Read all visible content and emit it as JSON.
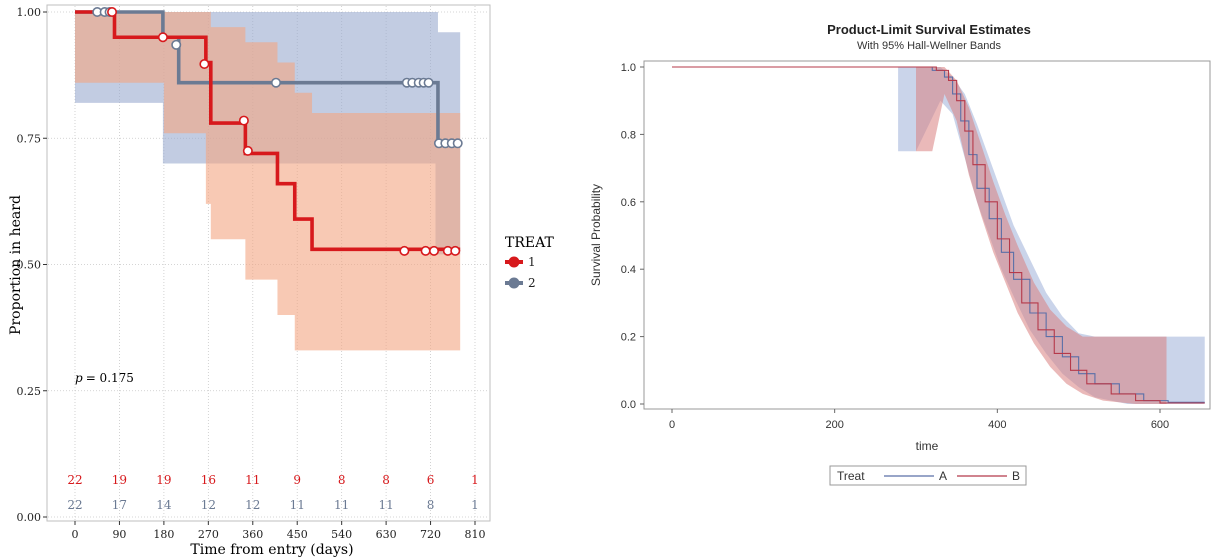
{
  "chart_data": [
    {
      "type": "line",
      "subtype": "kaplan-meier",
      "title": "",
      "xlabel": "Time from entry (days)",
      "ylabel": "Proportion in heard",
      "xlim": [
        -30,
        820
      ],
      "ylim": [
        0,
        1.0
      ],
      "xticks": [
        "0",
        "90",
        "180",
        "270",
        "360",
        "450",
        "540",
        "630",
        "720",
        "810"
      ],
      "yticks": [
        "0.00",
        "0.25",
        "0.50",
        "0.75",
        "1.00"
      ],
      "grid": true,
      "legend": {
        "title": "TREAT",
        "position": "right",
        "entries": [
          "1",
          "2"
        ]
      },
      "annotation": {
        "label": "p",
        "text": "= 0.175"
      },
      "series": [
        {
          "name": "1",
          "color": "#d7191c",
          "band_color": "#f4a582",
          "steps": [
            [
              0,
              1.0
            ],
            [
              80,
              0.95
            ],
            [
              180,
              0.95
            ],
            [
              265,
              0.9
            ],
            [
              275,
              0.78
            ],
            [
              345,
              0.72
            ],
            [
              410,
              0.66
            ],
            [
              445,
              0.59
            ],
            [
              480,
              0.53
            ],
            [
              780,
              0.53
            ]
          ],
          "band": [
            [
              0,
              1.0,
              1.0
            ],
            [
              80,
              0.86,
              1.0
            ],
            [
              180,
              0.86,
              1.0
            ],
            [
              265,
              0.76,
              1.0
            ],
            [
              275,
              0.62,
              0.97
            ],
            [
              345,
              0.55,
              0.94
            ],
            [
              410,
              0.47,
              0.9
            ],
            [
              445,
              0.4,
              0.84
            ],
            [
              480,
              0.33,
              0.8
            ],
            [
              780,
              0.33,
              0.8
            ]
          ],
          "censor": [
            [
              75,
              1.0
            ],
            [
              178,
              0.95
            ],
            [
              262,
              0.897
            ],
            [
              342,
              0.785
            ],
            [
              350,
              0.725
            ],
            [
              667,
              0.527
            ],
            [
              710,
              0.527
            ],
            [
              727,
              0.527
            ],
            [
              755,
              0.527
            ],
            [
              770,
              0.527
            ]
          ],
          "at_risk": [
            "22",
            "19",
            "19",
            "16",
            "11",
            "9",
            "8",
            "8",
            "6",
            "1"
          ]
        },
        {
          "name": "2",
          "color": "#6b7a93",
          "band_color": "#9aaace",
          "steps": [
            [
              0,
              1.0
            ],
            [
              178,
              0.95
            ],
            [
              210,
              0.86
            ],
            [
              730,
              0.86
            ],
            [
              735,
              0.74
            ],
            [
              780,
              0.74
            ]
          ],
          "band": [
            [
              0,
              1.0,
              1.0
            ],
            [
              178,
              0.82,
              1.0
            ],
            [
              210,
              0.7,
              1.0
            ],
            [
              275,
              0.7,
              1.0
            ],
            [
              445,
              0.7,
              1.0
            ],
            [
              730,
              0.7,
              1.0
            ],
            [
              735,
              0.52,
              0.96
            ],
            [
              780,
              0.52,
              0.96
            ]
          ],
          "censor": [
            [
              45,
              1.0
            ],
            [
              60,
              1.0
            ],
            [
              70,
              1.0
            ],
            [
              205,
              0.935
            ],
            [
              407,
              0.86
            ],
            [
              672,
              0.86
            ],
            [
              683,
              0.86
            ],
            [
              696,
              0.86
            ],
            [
              706,
              0.86
            ],
            [
              716,
              0.86
            ],
            [
              737,
              0.74
            ],
            [
              750,
              0.74
            ],
            [
              763,
              0.74
            ],
            [
              775,
              0.74
            ]
          ],
          "at_risk": [
            "22",
            "17",
            "14",
            "12",
            "12",
            "11",
            "11",
            "11",
            "8",
            "1"
          ]
        }
      ]
    },
    {
      "type": "line",
      "subtype": "kaplan-meier",
      "title": "Product-Limit Survival Estimates",
      "subtitle": "With 95% Hall-Wellner Bands",
      "xlabel": "time",
      "ylabel": "Survival Probability",
      "xlim": [
        -35,
        660
      ],
      "ylim": [
        -0.01,
        1.01
      ],
      "xticks": [
        "0",
        "200",
        "400",
        "600"
      ],
      "yticks": [
        "0.0",
        "0.2",
        "0.4",
        "0.6",
        "0.8",
        "1.0"
      ],
      "grid": false,
      "legend": {
        "title": "Treat",
        "position": "bottom",
        "entries": [
          "A",
          "B"
        ]
      },
      "series": [
        {
          "name": "A",
          "color": "#5a6fa8",
          "band_color": "#9fb0d8",
          "points": [
            [
              0,
              1.0
            ],
            [
              280,
              1.0
            ],
            [
              320,
              0.99
            ],
            [
              335,
              0.97
            ],
            [
              345,
              0.92
            ],
            [
              355,
              0.84
            ],
            [
              365,
              0.74
            ],
            [
              375,
              0.64
            ],
            [
              390,
              0.55
            ],
            [
              405,
              0.45
            ],
            [
              420,
              0.37
            ],
            [
              440,
              0.27
            ],
            [
              460,
              0.2
            ],
            [
              480,
              0.14
            ],
            [
              500,
              0.09
            ],
            [
              520,
              0.06
            ],
            [
              550,
              0.03
            ],
            [
              580,
              0.01
            ],
            [
              610,
              0.005
            ],
            [
              655,
              0.005
            ]
          ],
          "band": [
            [
              278,
              0.75,
              1.0
            ],
            [
              300,
              0.75,
              1.0
            ],
            [
              330,
              0.9,
              1.0
            ],
            [
              345,
              0.86,
              0.97
            ],
            [
              360,
              0.73,
              0.92
            ],
            [
              375,
              0.6,
              0.83
            ],
            [
              390,
              0.5,
              0.73
            ],
            [
              405,
              0.4,
              0.63
            ],
            [
              420,
              0.32,
              0.53
            ],
            [
              440,
              0.22,
              0.43
            ],
            [
              460,
              0.15,
              0.33
            ],
            [
              480,
              0.09,
              0.26
            ],
            [
              500,
              0.05,
              0.21
            ],
            [
              520,
              0.02,
              0.2
            ],
            [
              560,
              0.0,
              0.2
            ],
            [
              610,
              0.0,
              0.2
            ],
            [
              655,
              0.0,
              0.2
            ]
          ]
        },
        {
          "name": "B",
          "color": "#b5394a",
          "band_color": "#d98080",
          "points": [
            [
              0,
              1.0
            ],
            [
              300,
              1.0
            ],
            [
              325,
              0.99
            ],
            [
              340,
              0.96
            ],
            [
              350,
              0.9
            ],
            [
              360,
              0.81
            ],
            [
              370,
              0.71
            ],
            [
              385,
              0.6
            ],
            [
              400,
              0.49
            ],
            [
              415,
              0.39
            ],
            [
              430,
              0.3
            ],
            [
              450,
              0.22
            ],
            [
              470,
              0.15
            ],
            [
              490,
              0.1
            ],
            [
              510,
              0.06
            ],
            [
              540,
              0.03
            ],
            [
              570,
              0.01
            ],
            [
              600,
              0.003
            ],
            [
              655,
              0.003
            ]
          ],
          "band": [
            [
              300,
              0.75,
              1.0
            ],
            [
              320,
              0.75,
              1.0
            ],
            [
              335,
              0.92,
              1.0
            ],
            [
              350,
              0.84,
              0.96
            ],
            [
              365,
              0.68,
              0.88
            ],
            [
              380,
              0.56,
              0.77
            ],
            [
              395,
              0.45,
              0.66
            ],
            [
              410,
              0.36,
              0.56
            ],
            [
              425,
              0.27,
              0.47
            ],
            [
              445,
              0.18,
              0.36
            ],
            [
              465,
              0.11,
              0.28
            ],
            [
              485,
              0.06,
              0.23
            ],
            [
              505,
              0.03,
              0.2
            ],
            [
              530,
              0.01,
              0.2
            ],
            [
              570,
              0.0,
              0.2
            ],
            [
              608,
              0.0,
              0.2
            ]
          ]
        }
      ]
    }
  ]
}
